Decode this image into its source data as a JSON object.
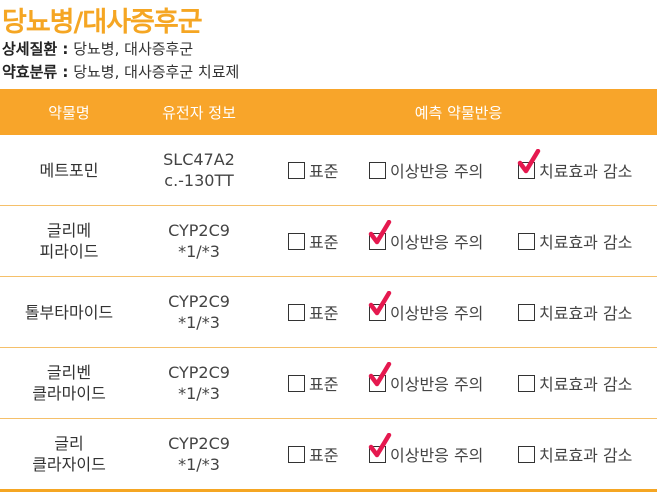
{
  "header": {
    "title": "당뇨병/대사증후군",
    "detail_label": "상세질환 :",
    "detail_value": "당뇨병, 대사증후군",
    "drug_category_label": "약효분류 :",
    "drug_category_value": "당뇨병, 대사증후군 치료제"
  },
  "table": {
    "columns": [
      "약물명",
      "유전자 정보",
      "예측 약물반응"
    ],
    "options": [
      "표준",
      "이상반응 주의",
      "치료효과 감소"
    ],
    "rows": [
      {
        "drug": [
          "메트포민"
        ],
        "gene": [
          "SLC47A2",
          "c.-130TT"
        ],
        "checked": [
          false,
          false,
          true
        ]
      },
      {
        "drug": [
          "글리메",
          "피라이드"
        ],
        "gene": [
          "CYP2C9",
          "*1/*3"
        ],
        "checked": [
          false,
          true,
          false
        ]
      },
      {
        "drug": [
          "톨부타마이드"
        ],
        "gene": [
          "CYP2C9",
          "*1/*3"
        ],
        "checked": [
          false,
          true,
          false
        ]
      },
      {
        "drug": [
          "글리벤",
          "클라마이드"
        ],
        "gene": [
          "CYP2C9",
          "*1/*3"
        ],
        "checked": [
          false,
          true,
          false
        ]
      },
      {
        "drug": [
          "글리",
          "클라자이드"
        ],
        "gene": [
          "CYP2C9",
          "*1/*3"
        ],
        "checked": [
          false,
          true,
          false
        ]
      }
    ]
  },
  "colors": {
    "accent": "#f8a52a",
    "check": "#e5194f"
  }
}
